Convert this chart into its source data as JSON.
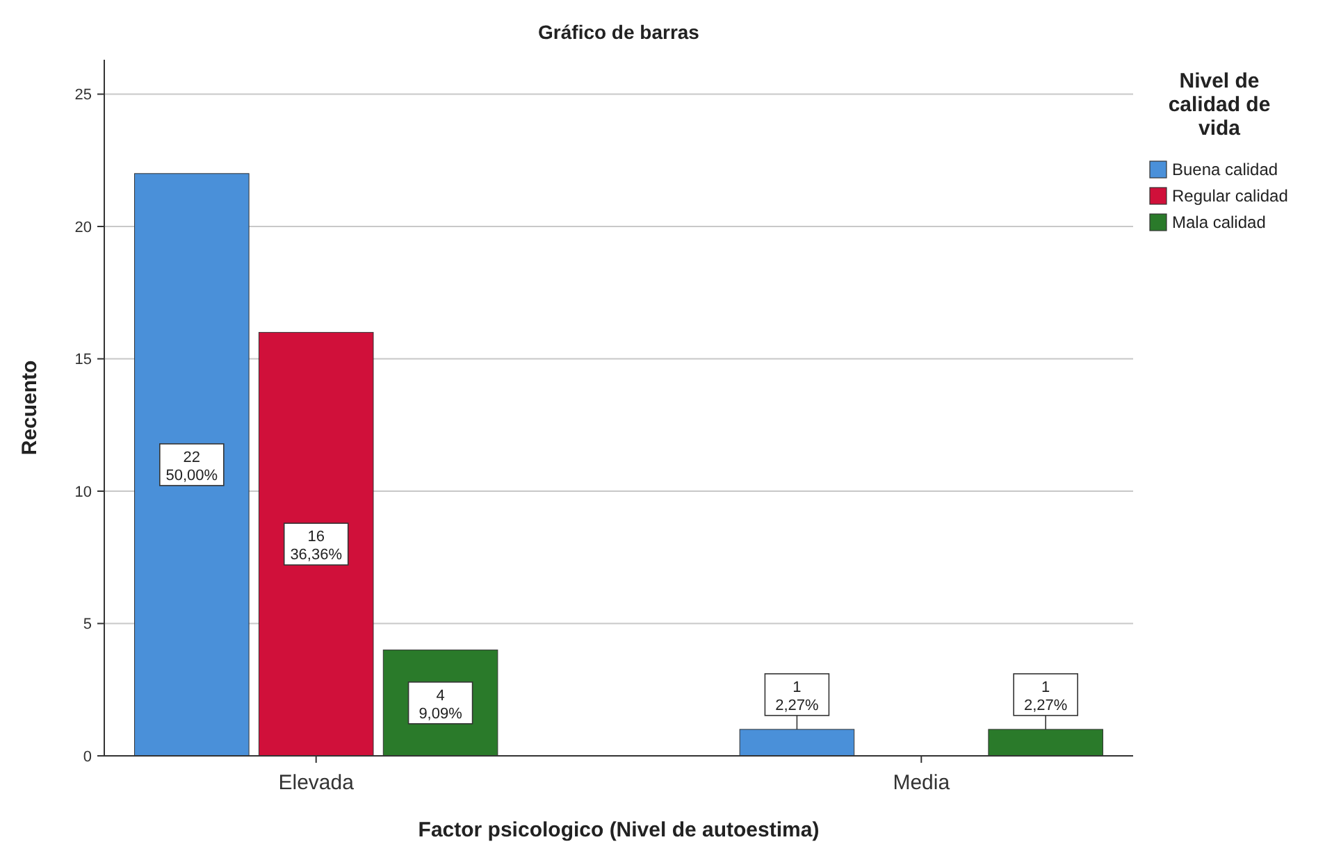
{
  "chart_data": {
    "type": "bar",
    "title": "Gráfico de barras",
    "xlabel": "Factor psicologico (Nivel de autoestima)",
    "ylabel": "Recuento",
    "legend_title": "Nivel de calidad de vida",
    "categories": [
      "Elevada",
      "Media"
    ],
    "series": [
      {
        "name": "Buena calidad",
        "color": "#4a90d9",
        "values": [
          22,
          1
        ],
        "value_labels": [
          "22\n50,00%",
          "1\n2,27%"
        ]
      },
      {
        "name": "Regular calidad",
        "color": "#d0103a",
        "values": [
          16,
          0
        ],
        "value_labels": [
          "16\n36,36%",
          null
        ]
      },
      {
        "name": "Mala calidad",
        "color": "#2a7a2a",
        "values": [
          4,
          1
        ],
        "value_labels": [
          "4\n9,09%",
          "1\n2,27%"
        ]
      }
    ],
    "ylim": [
      0,
      26.3
    ],
    "yticks": [
      0,
      5,
      10,
      15,
      20,
      25
    ],
    "grid": "y",
    "legend": "top right"
  }
}
